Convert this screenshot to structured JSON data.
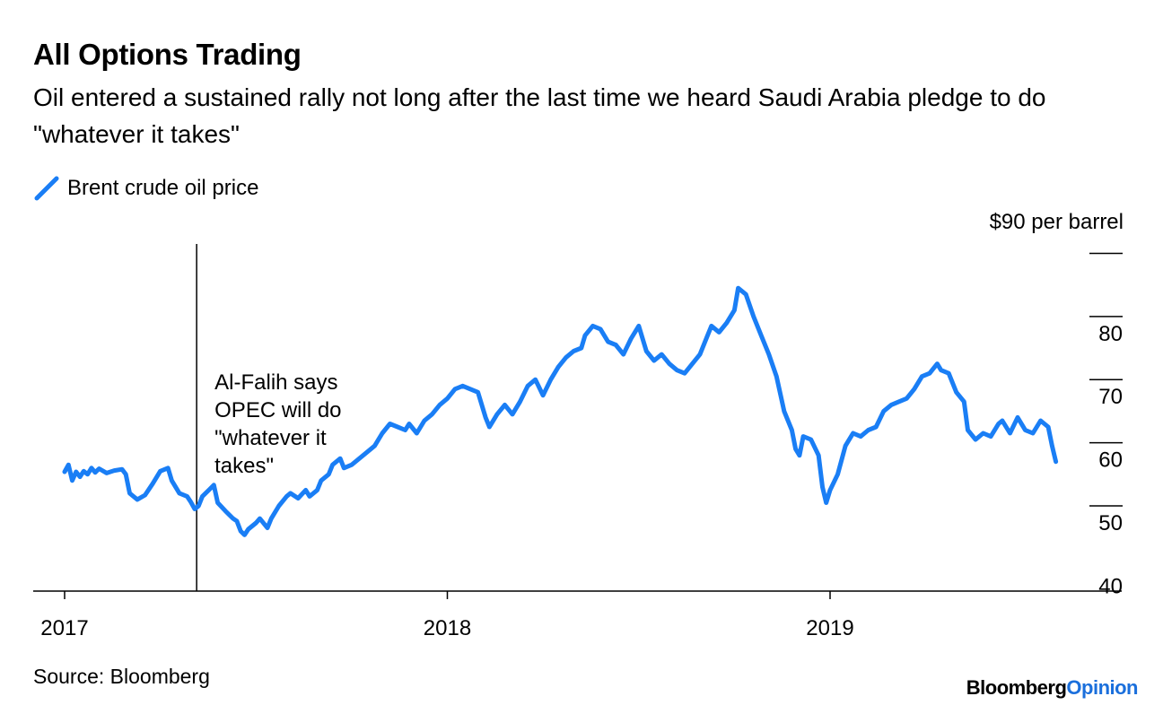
{
  "chart_data": {
    "type": "line",
    "title": "All Options Trading",
    "subtitle": "Oil entered a sustained rally not long after the last time we heard Saudi Arabia pledge to do \"whatever it takes\"",
    "legend": [
      {
        "name": "Brent crude oil price",
        "color": "#1a7ef5"
      }
    ],
    "y_unit_label": "$90 per barrel",
    "y_ticks": [
      40,
      50,
      60,
      70,
      80,
      90
    ],
    "y_tick_labels": [
      "40",
      "50",
      "60",
      "70",
      "80",
      ""
    ],
    "ylim": [
      36.5,
      92
    ],
    "x_ticks": [
      2017.0,
      2018.0,
      2019.0
    ],
    "x_tick_labels": [
      "2017",
      "2018",
      "2019"
    ],
    "xlim": [
      2016.92,
      2019.78
    ],
    "annotation": {
      "x": 2017.345,
      "lines": [
        "Al-Falih says",
        "OPEC will do",
        "\"whatever it",
        "takes\""
      ]
    },
    "series": [
      {
        "name": "Brent crude oil price",
        "points": [
          [
            2017.0,
            55.4
          ],
          [
            2017.01,
            56.5
          ],
          [
            2017.02,
            54.0
          ],
          [
            2017.03,
            55.4
          ],
          [
            2017.04,
            54.6
          ],
          [
            2017.05,
            55.5
          ],
          [
            2017.06,
            55.0
          ],
          [
            2017.07,
            56.0
          ],
          [
            2017.08,
            55.3
          ],
          [
            2017.09,
            55.9
          ],
          [
            2017.11,
            55.2
          ],
          [
            2017.13,
            55.6
          ],
          [
            2017.15,
            55.8
          ],
          [
            2017.16,
            55.0
          ],
          [
            2017.17,
            52.0
          ],
          [
            2017.19,
            51.0
          ],
          [
            2017.21,
            51.7
          ],
          [
            2017.23,
            53.5
          ],
          [
            2017.25,
            55.5
          ],
          [
            2017.27,
            56.0
          ],
          [
            2017.28,
            54.0
          ],
          [
            2017.3,
            52.0
          ],
          [
            2017.32,
            51.5
          ],
          [
            2017.33,
            50.6
          ],
          [
            2017.34,
            49.5
          ],
          [
            2017.35,
            50.0
          ],
          [
            2017.36,
            51.5
          ],
          [
            2017.38,
            52.7
          ],
          [
            2017.39,
            53.3
          ],
          [
            2017.4,
            50.5
          ],
          [
            2017.42,
            49.2
          ],
          [
            2017.44,
            48.0
          ],
          [
            2017.45,
            47.6
          ],
          [
            2017.46,
            46.0
          ],
          [
            2017.47,
            45.4
          ],
          [
            2017.48,
            46.3
          ],
          [
            2017.5,
            47.3
          ],
          [
            2017.51,
            48.0
          ],
          [
            2017.53,
            46.5
          ],
          [
            2017.54,
            48.0
          ],
          [
            2017.56,
            50.0
          ],
          [
            2017.58,
            51.5
          ],
          [
            2017.59,
            52.0
          ],
          [
            2017.61,
            51.2
          ],
          [
            2017.63,
            52.5
          ],
          [
            2017.64,
            51.5
          ],
          [
            2017.66,
            52.5
          ],
          [
            2017.67,
            54.0
          ],
          [
            2017.69,
            55.0
          ],
          [
            2017.7,
            56.5
          ],
          [
            2017.72,
            57.5
          ],
          [
            2017.73,
            56.0
          ],
          [
            2017.75,
            56.5
          ],
          [
            2017.77,
            57.5
          ],
          [
            2017.79,
            58.5
          ],
          [
            2017.81,
            59.5
          ],
          [
            2017.83,
            61.5
          ],
          [
            2017.85,
            63.0
          ],
          [
            2017.87,
            62.5
          ],
          [
            2017.89,
            62.0
          ],
          [
            2017.9,
            63.0
          ],
          [
            2017.92,
            61.5
          ],
          [
            2017.94,
            63.5
          ],
          [
            2017.96,
            64.5
          ],
          [
            2017.98,
            66.0
          ],
          [
            2018.0,
            67.0
          ],
          [
            2018.02,
            68.5
          ],
          [
            2018.04,
            69.0
          ],
          [
            2018.06,
            68.5
          ],
          [
            2018.08,
            68.0
          ],
          [
            2018.1,
            64.0
          ],
          [
            2018.11,
            62.5
          ],
          [
            2018.13,
            64.5
          ],
          [
            2018.15,
            66.0
          ],
          [
            2018.17,
            64.5
          ],
          [
            2018.19,
            66.5
          ],
          [
            2018.21,
            69.0
          ],
          [
            2018.23,
            70.0
          ],
          [
            2018.25,
            67.5
          ],
          [
            2018.27,
            70.0
          ],
          [
            2018.29,
            72.0
          ],
          [
            2018.31,
            73.5
          ],
          [
            2018.33,
            74.5
          ],
          [
            2018.35,
            75.0
          ],
          [
            2018.36,
            77.0
          ],
          [
            2018.38,
            78.5
          ],
          [
            2018.4,
            78.0
          ],
          [
            2018.42,
            76.0
          ],
          [
            2018.44,
            75.5
          ],
          [
            2018.46,
            74.0
          ],
          [
            2018.48,
            76.5
          ],
          [
            2018.5,
            78.5
          ],
          [
            2018.52,
            74.5
          ],
          [
            2018.54,
            73.0
          ],
          [
            2018.56,
            74.0
          ],
          [
            2018.58,
            72.5
          ],
          [
            2018.6,
            71.5
          ],
          [
            2018.62,
            71.0
          ],
          [
            2018.64,
            72.5
          ],
          [
            2018.66,
            74.0
          ],
          [
            2018.68,
            77.0
          ],
          [
            2018.69,
            78.5
          ],
          [
            2018.71,
            77.5
          ],
          [
            2018.73,
            79.0
          ],
          [
            2018.75,
            81.0
          ],
          [
            2018.76,
            84.5
          ],
          [
            2018.78,
            83.5
          ],
          [
            2018.8,
            80.0
          ],
          [
            2018.82,
            77.0
          ],
          [
            2018.84,
            74.0
          ],
          [
            2018.86,
            70.5
          ],
          [
            2018.88,
            65.0
          ],
          [
            2018.9,
            62.0
          ],
          [
            2018.91,
            59.0
          ],
          [
            2018.92,
            58.0
          ],
          [
            2018.93,
            61.0
          ],
          [
            2018.95,
            60.5
          ],
          [
            2018.97,
            58.0
          ],
          [
            2018.98,
            53.0
          ],
          [
            2018.99,
            50.5
          ],
          [
            2019.0,
            52.5
          ],
          [
            2019.02,
            55.0
          ],
          [
            2019.04,
            59.5
          ],
          [
            2019.06,
            61.5
          ],
          [
            2019.08,
            61.0
          ],
          [
            2019.1,
            62.0
          ],
          [
            2019.12,
            62.5
          ],
          [
            2019.14,
            65.0
          ],
          [
            2019.16,
            66.0
          ],
          [
            2019.18,
            66.5
          ],
          [
            2019.2,
            67.0
          ],
          [
            2019.22,
            68.5
          ],
          [
            2019.24,
            70.5
          ],
          [
            2019.26,
            71.0
          ],
          [
            2019.28,
            72.5
          ],
          [
            2019.29,
            71.5
          ],
          [
            2019.31,
            71.0
          ],
          [
            2019.33,
            68.0
          ],
          [
            2019.35,
            66.5
          ],
          [
            2019.36,
            62.0
          ],
          [
            2019.38,
            60.5
          ],
          [
            2019.4,
            61.5
          ],
          [
            2019.42,
            61.0
          ],
          [
            2019.44,
            63.0
          ],
          [
            2019.45,
            63.5
          ],
          [
            2019.47,
            61.5
          ],
          [
            2019.49,
            64.0
          ],
          [
            2019.51,
            62.0
          ],
          [
            2019.53,
            61.5
          ],
          [
            2019.55,
            63.5
          ],
          [
            2019.57,
            62.5
          ],
          [
            2019.58,
            59.5
          ],
          [
            2019.59,
            57.0
          ]
        ]
      }
    ]
  },
  "footer": {
    "source": "Source: Bloomberg",
    "brand_main": "Bloomberg",
    "brand_accent": "Opinion"
  }
}
